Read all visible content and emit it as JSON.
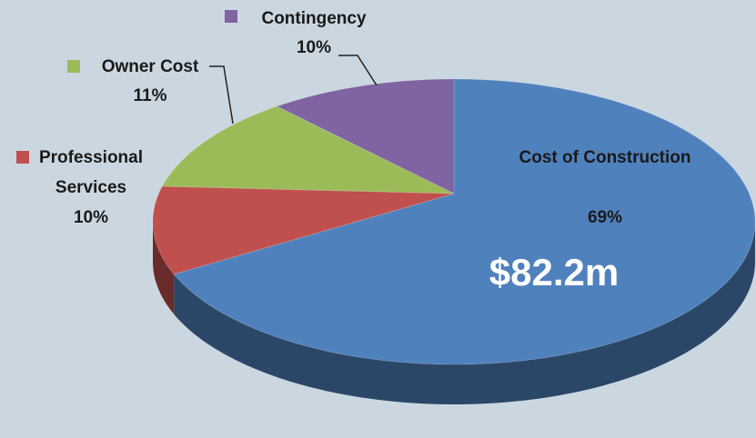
{
  "chart_data": {
    "type": "pie",
    "categories": [
      "Cost of Construction",
      "Professional Services",
      "Owner Cost",
      "Contingency"
    ],
    "values": [
      69,
      10,
      11,
      10
    ],
    "value_labels": [
      "69%",
      "10%",
      "11%",
      "10%"
    ],
    "colors": [
      "#4f81bd",
      "#c0504d",
      "#9bbb59",
      "#8064a2"
    ],
    "annotation": "$82.2m"
  }
}
